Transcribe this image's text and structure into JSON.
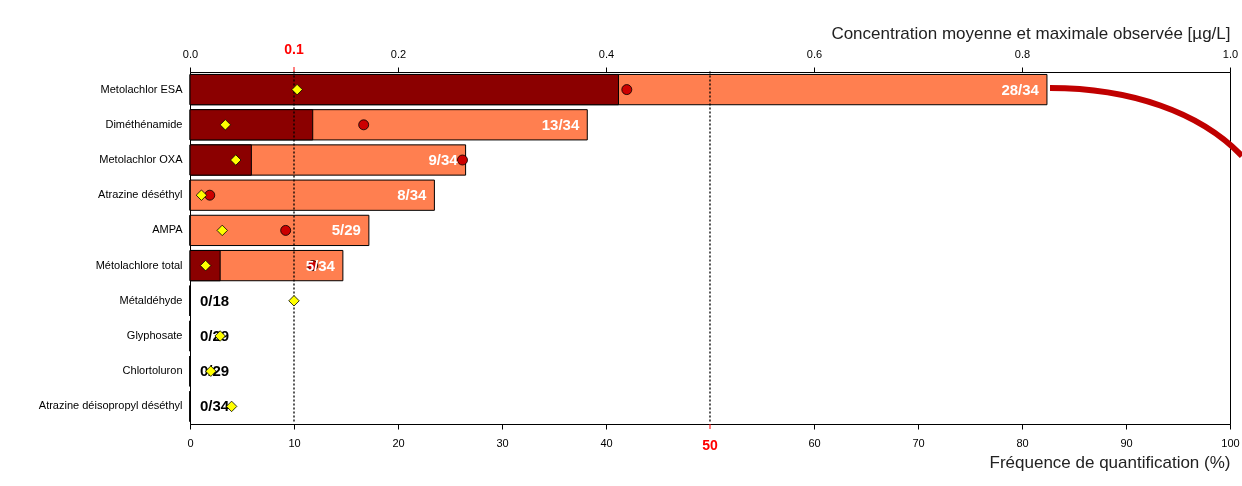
{
  "chart_data": {
    "type": "bar",
    "orientation": "horizontal",
    "xlabel": "Fréquence de quantification (%)",
    "x2label": "Concentration moyenne et maximale observée [µg/L]",
    "categories": [
      "Metolachlor ESA",
      "Diméthénamide",
      "Metolachlor OXA",
      "Atrazine déséthyl",
      "AMPA",
      "Métolachlore total",
      "Métaldéhyde",
      "Glyphosate",
      "Chlortoluron",
      "Atrazine déisopropyl déséthyl"
    ],
    "xlim": [
      0,
      100
    ],
    "xticks": [
      0,
      10,
      20,
      30,
      40,
      60,
      70,
      80,
      90,
      100
    ],
    "x2lim": [
      0,
      1
    ],
    "x2ticks": [
      {
        "value": 0,
        "label": "0.0"
      },
      0.2,
      0.4,
      0.6,
      0.8,
      {
        "value": 1,
        "label": "1.0"
      }
    ],
    "series": [
      {
        "color": "#ff7f50",
        "values": [
          82.4,
          38.2,
          26.5,
          23.5,
          17.2,
          14.7,
          0,
          0,
          0,
          0
        ],
        "value_labels": [
          "28/34",
          "13/34",
          "9/34",
          "8/34",
          "5/29",
          "5/34",
          "0/18",
          "0/29",
          "0/29",
          "0/34"
        ]
      },
      {
        "color": "#8b0000",
        "values": [
          41.2,
          11.8,
          5.9,
          0,
          0,
          2.9,
          0,
          0,
          0,
          0
        ]
      },
      {
        "type": "scatter",
        "axis": "x2",
        "marker": "circle",
        "color": "#cc0000",
        "values": [
          0.42,
          0.167,
          0.262,
          0.019,
          0.092,
          0.118,
          null,
          null,
          null,
          null
        ]
      },
      {
        "type": "scatter",
        "axis": "x2",
        "marker": "diamond",
        "color": "#ffff00",
        "values": [
          0.103,
          0.034,
          0.044,
          0.011,
          0.031,
          0.015,
          0.1,
          0.029,
          0.02,
          0.04
        ]
      }
    ],
    "ref_lines": [
      {
        "axis": "x",
        "value": 50,
        "label": "50",
        "color": "#000000",
        "line_style": "dotted"
      },
      {
        "axis": "x2",
        "value": 0.1,
        "label": "0.1",
        "color": "#000000",
        "line_style": "dotted"
      }
    ]
  }
}
